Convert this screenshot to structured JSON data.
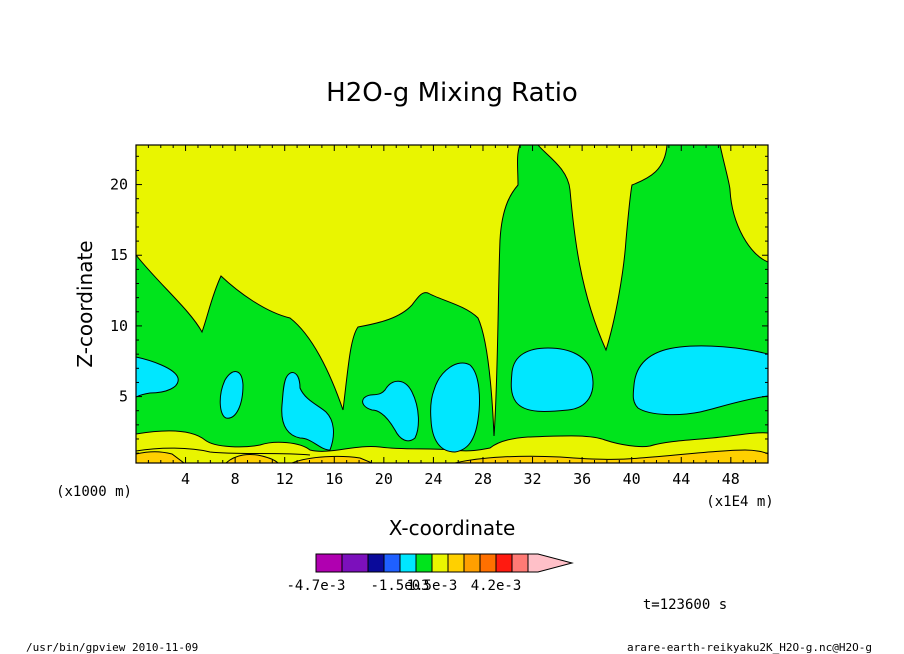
{
  "chart_data": {
    "type": "heatmap",
    "title": "H2O-g Mixing Ratio",
    "xlabel": "X-coordinate",
    "ylabel": "Z-coordinate",
    "x_unit": "(x1000 m)",
    "x_unit_right": "(x1E4 m)",
    "xlim": [
      0,
      51
    ],
    "ylim": [
      0.3,
      22.8
    ],
    "x_ticks": [
      4,
      8,
      12,
      16,
      20,
      24,
      28,
      32,
      36,
      40,
      44,
      48
    ],
    "y_ticks": [
      5,
      10,
      15,
      20
    ],
    "colorbar": {
      "colors": [
        "#b000b0",
        "#7c10bc",
        "#0a0a9a",
        "#1f60ff",
        "#00e7ff",
        "#00e41c",
        "#e9f500",
        "#ffd000",
        "#ff9f00",
        "#ff7000",
        "#ff1a10",
        "#ff7a75",
        "#ffc0c8"
      ],
      "labels": [
        "-4.7e-3",
        "-1.5e-3",
        "0",
        "1.5e-3",
        "4.2e-3"
      ],
      "label_positions": [
        0,
        3,
        4,
        5,
        9
      ]
    },
    "time_label": "t=123600 s"
  },
  "footer": {
    "left": "/usr/bin/gpview  2010-11-09",
    "right": "arare-earth-reikyaku2K_H2O-g.nc@H2O-g"
  }
}
